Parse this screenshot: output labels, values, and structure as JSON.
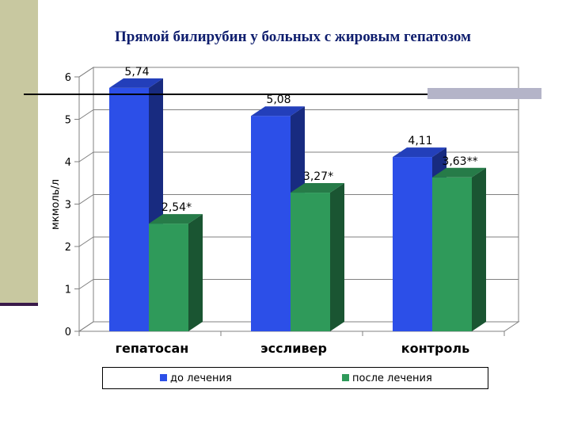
{
  "slide": {
    "title": "Прямой билирубин у больных с жировым гепатозом"
  },
  "chart_data": {
    "type": "bar",
    "categories": [
      "гепатосан",
      "эссливер",
      "контроль"
    ],
    "series": [
      {
        "name": "до лечения",
        "values": [
          5.74,
          5.08,
          4.11
        ],
        "labels": [
          "5,74",
          "5,08",
          "4,11"
        ],
        "color": "#2c4fe8"
      },
      {
        "name": "после лечения",
        "values": [
          2.54,
          3.27,
          3.63
        ],
        "labels": [
          "2,54*",
          "3,27*",
          "3,63**"
        ],
        "color": "#2f9a5a"
      }
    ],
    "ylabel": "мкмоль/л",
    "ylim": [
      0,
      6
    ],
    "yticks": [
      0,
      1,
      2,
      3,
      4,
      5,
      6
    ],
    "grid": true,
    "legend": "bottom"
  }
}
